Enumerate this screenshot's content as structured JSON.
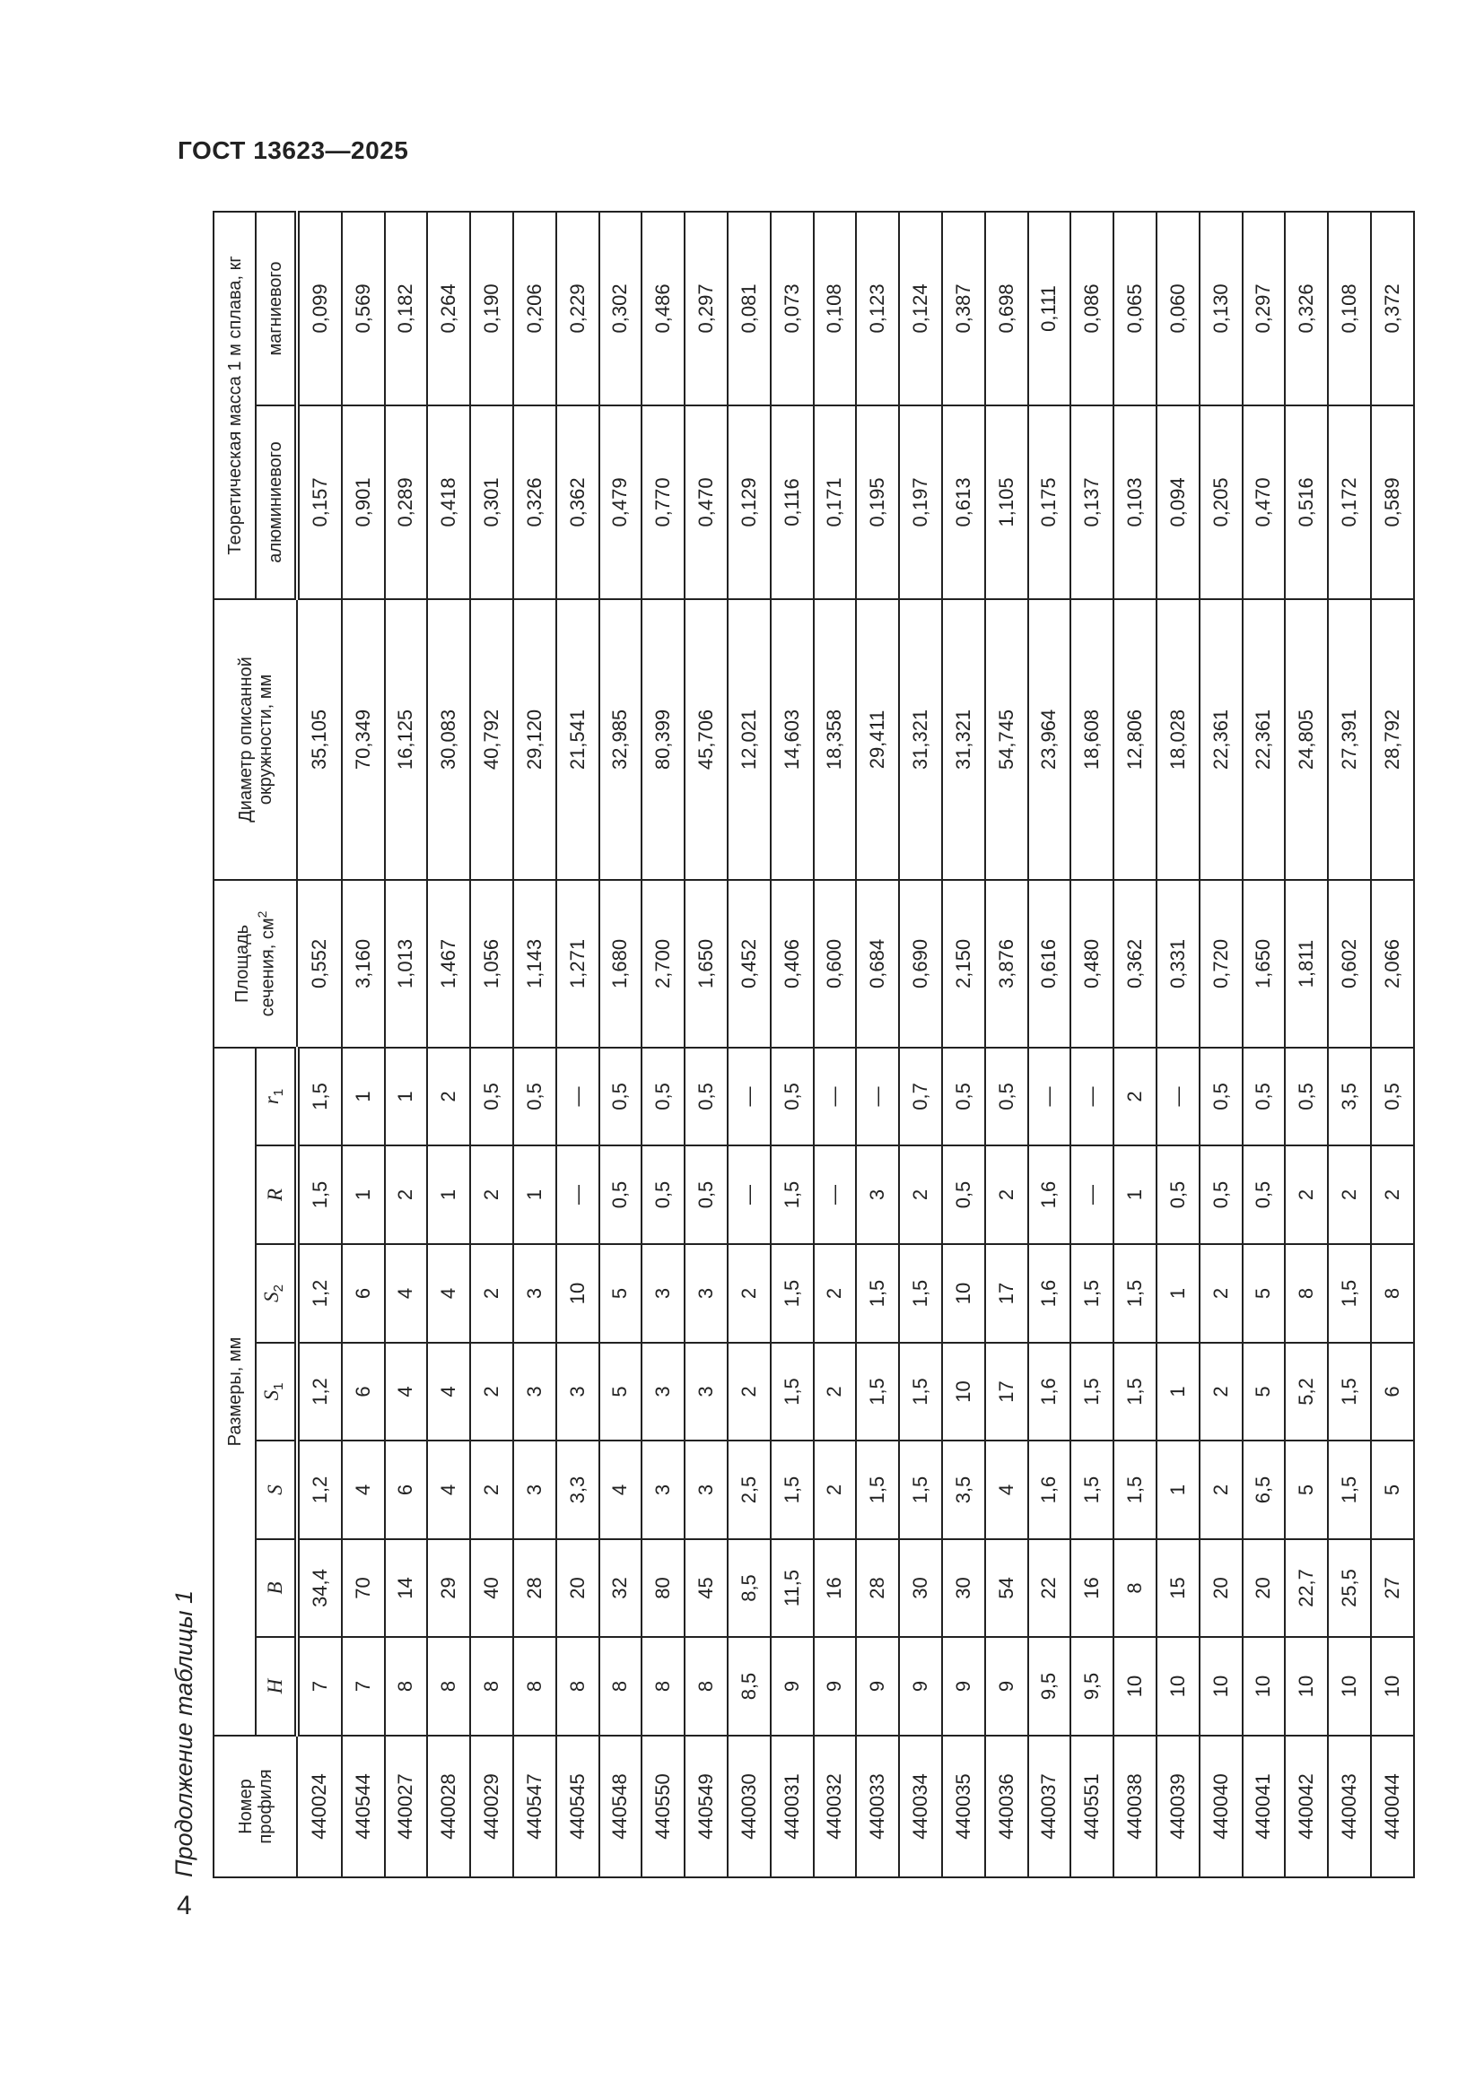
{
  "header": {
    "doc_title": "ГОСТ 13623—2025",
    "page_number": "4"
  },
  "caption": "Продолжение таблицы 1",
  "table": {
    "col_profile": "Номер профиля",
    "group_dimensions": "Размеры, мм",
    "dims": [
      {
        "label": "H",
        "sub": ""
      },
      {
        "label": "B",
        "sub": ""
      },
      {
        "label": "S",
        "sub": ""
      },
      {
        "label": "S",
        "sub": "1"
      },
      {
        "label": "S",
        "sub": "2"
      },
      {
        "label": "R",
        "sub": ""
      },
      {
        "label": "r",
        "sub": "1"
      }
    ],
    "col_area": "Площадь сечения, см",
    "col_area_sup": "2",
    "col_diameter": "Диаметр описанной окружности, мм",
    "group_mass": "Теоретическая масса 1 м сплава, кг",
    "col_aluminium": "алюминиевого",
    "col_magnesium": "магниевого",
    "rows": [
      [
        "440024",
        "7",
        "34,4",
        "1,2",
        "1,2",
        "1,2",
        "1,5",
        "1,5",
        "0,552",
        "35,105",
        "0,157",
        "0,099"
      ],
      [
        "440544",
        "7",
        "70",
        "4",
        "6",
        "6",
        "1",
        "1",
        "3,160",
        "70,349",
        "0,901",
        "0,569"
      ],
      [
        "440027",
        "8",
        "14",
        "6",
        "4",
        "4",
        "2",
        "1",
        "1,013",
        "16,125",
        "0,289",
        "0,182"
      ],
      [
        "440028",
        "8",
        "29",
        "4",
        "4",
        "4",
        "1",
        "2",
        "1,467",
        "30,083",
        "0,418",
        "0,264"
      ],
      [
        "440029",
        "8",
        "40",
        "2",
        "2",
        "2",
        "2",
        "0,5",
        "1,056",
        "40,792",
        "0,301",
        "0,190"
      ],
      [
        "440547",
        "8",
        "28",
        "3",
        "3",
        "3",
        "1",
        "0,5",
        "1,143",
        "29,120",
        "0,326",
        "0,206"
      ],
      [
        "440545",
        "8",
        "20",
        "3,3",
        "3",
        "10",
        "—",
        "—",
        "1,271",
        "21,541",
        "0,362",
        "0,229"
      ],
      [
        "440548",
        "8",
        "32",
        "4",
        "5",
        "5",
        "0,5",
        "0,5",
        "1,680",
        "32,985",
        "0,479",
        "0,302"
      ],
      [
        "440550",
        "8",
        "80",
        "3",
        "3",
        "3",
        "0,5",
        "0,5",
        "2,700",
        "80,399",
        "0,770",
        "0,486"
      ],
      [
        "440549",
        "8",
        "45",
        "3",
        "3",
        "3",
        "0,5",
        "0,5",
        "1,650",
        "45,706",
        "0,470",
        "0,297"
      ],
      [
        "440030",
        "8,5",
        "8,5",
        "2,5",
        "2",
        "2",
        "—",
        "—",
        "0,452",
        "12,021",
        "0,129",
        "0,081"
      ],
      [
        "440031",
        "9",
        "11,5",
        "1,5",
        "1,5",
        "1,5",
        "1,5",
        "0,5",
        "0,406",
        "14,603",
        "0,116",
        "0,073"
      ],
      [
        "440032",
        "9",
        "16",
        "2",
        "2",
        "2",
        "—",
        "—",
        "0,600",
        "18,358",
        "0,171",
        "0,108"
      ],
      [
        "440033",
        "9",
        "28",
        "1,5",
        "1,5",
        "1,5",
        "3",
        "—",
        "0,684",
        "29,411",
        "0,195",
        "0,123"
      ],
      [
        "440034",
        "9",
        "30",
        "1,5",
        "1,5",
        "1,5",
        "2",
        "0,7",
        "0,690",
        "31,321",
        "0,197",
        "0,124"
      ],
      [
        "440035",
        "9",
        "30",
        "3,5",
        "10",
        "10",
        "0,5",
        "0,5",
        "2,150",
        "31,321",
        "0,613",
        "0,387"
      ],
      [
        "440036",
        "9",
        "54",
        "4",
        "17",
        "17",
        "2",
        "0,5",
        "3,876",
        "54,745",
        "1,105",
        "0,698"
      ],
      [
        "440037",
        "9,5",
        "22",
        "1,6",
        "1,6",
        "1,6",
        "1,6",
        "—",
        "0,616",
        "23,964",
        "0,175",
        "0,111"
      ],
      [
        "440551",
        "9,5",
        "16",
        "1,5",
        "1,5",
        "1,5",
        "—",
        "—",
        "0,480",
        "18,608",
        "0,137",
        "0,086"
      ],
      [
        "440038",
        "10",
        "8",
        "1,5",
        "1,5",
        "1,5",
        "1",
        "2",
        "0,362",
        "12,806",
        "0,103",
        "0,065"
      ],
      [
        "440039",
        "10",
        "15",
        "1",
        "1",
        "1",
        "0,5",
        "—",
        "0,331",
        "18,028",
        "0,094",
        "0,060"
      ],
      [
        "440040",
        "10",
        "20",
        "2",
        "2",
        "2",
        "0,5",
        "0,5",
        "0,720",
        "22,361",
        "0,205",
        "0,130"
      ],
      [
        "440041",
        "10",
        "20",
        "6,5",
        "5",
        "5",
        "0,5",
        "0,5",
        "1,650",
        "22,361",
        "0,470",
        "0,297"
      ],
      [
        "440042",
        "10",
        "22,7",
        "5",
        "5,2",
        "8",
        "2",
        "0,5",
        "1,811",
        "24,805",
        "0,516",
        "0,326"
      ],
      [
        "440043",
        "10",
        "25,5",
        "1,5",
        "1,5",
        "1,5",
        "2",
        "3,5",
        "0,602",
        "27,391",
        "0,172",
        "0,108"
      ],
      [
        "440044",
        "10",
        "27",
        "5",
        "6",
        "8",
        "2",
        "0,5",
        "2,066",
        "28,792",
        "0,589",
        "0,372"
      ]
    ]
  }
}
